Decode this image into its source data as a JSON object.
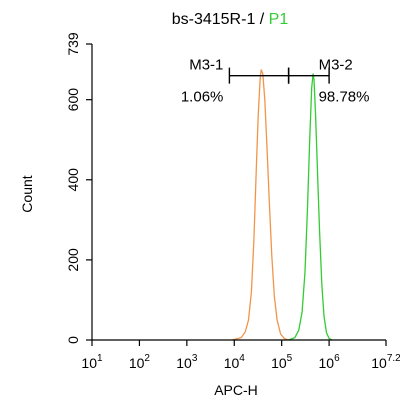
{
  "chart_data": {
    "type": "line",
    "title_main": "bs-3415R-1 / ",
    "title_population": "P1",
    "xlabel": "APC-H",
    "ylabel": "Count",
    "x_scale": "log10",
    "xlim": [
      10,
      15848932
    ],
    "ylim": [
      0,
      739
    ],
    "x_ticks": [
      {
        "base": "10",
        "exp": "1",
        "value": 10
      },
      {
        "base": "10",
        "exp": "2",
        "value": 100
      },
      {
        "base": "10",
        "exp": "3",
        "value": 1000
      },
      {
        "base": "10",
        "exp": "4",
        "value": 10000
      },
      {
        "base": "10",
        "exp": "5",
        "value": 100000
      },
      {
        "base": "10",
        "exp": "6",
        "value": 1000000
      },
      {
        "base": "10",
        "exp": "7.2",
        "value": 15848932
      }
    ],
    "y_ticks": [
      {
        "label": "0",
        "value": 0
      },
      {
        "label": "200",
        "value": 200
      },
      {
        "label": "400",
        "value": 400
      },
      {
        "label": "600",
        "value": 600
      },
      {
        "label": "739",
        "value": 739
      }
    ],
    "colors": {
      "series1": "#f0954a",
      "series2": "#33cc33",
      "population": "#33cc33",
      "axis": "#000000"
    },
    "series": [
      {
        "color": "#f0954a",
        "points": [
          [
            9000,
            0
          ],
          [
            14000,
            6
          ],
          [
            17000,
            20
          ],
          [
            20000,
            50
          ],
          [
            23000,
            120
          ],
          [
            26000,
            250
          ],
          [
            29000,
            420
          ],
          [
            32000,
            560
          ],
          [
            35000,
            650
          ],
          [
            37000,
            675
          ],
          [
            40000,
            665
          ],
          [
            44000,
            600
          ],
          [
            49000,
            480
          ],
          [
            55000,
            340
          ],
          [
            62000,
            210
          ],
          [
            70000,
            110
          ],
          [
            80000,
            50
          ],
          [
            95000,
            15
          ],
          [
            115000,
            3
          ],
          [
            140000,
            0
          ]
        ]
      },
      {
        "color": "#33cc33",
        "points": [
          [
            140000,
            0
          ],
          [
            190000,
            6
          ],
          [
            230000,
            25
          ],
          [
            270000,
            70
          ],
          [
            310000,
            170
          ],
          [
            350000,
            330
          ],
          [
            390000,
            500
          ],
          [
            430000,
            630
          ],
          [
            460000,
            665
          ],
          [
            480000,
            650
          ],
          [
            520000,
            560
          ],
          [
            570000,
            420
          ],
          [
            630000,
            270
          ],
          [
            700000,
            140
          ],
          [
            780000,
            60
          ],
          [
            880000,
            18
          ],
          [
            1000000,
            4
          ],
          [
            1150000,
            0
          ]
        ]
      }
    ],
    "gates": [
      {
        "name": "M3-1",
        "percent": "1.06%",
        "x_start": 7900,
        "x_end": 140000,
        "y": 660
      },
      {
        "name": "M3-2",
        "percent": "98.78%",
        "x_start": 140000,
        "x_end": 1000000,
        "y": 660
      }
    ]
  }
}
